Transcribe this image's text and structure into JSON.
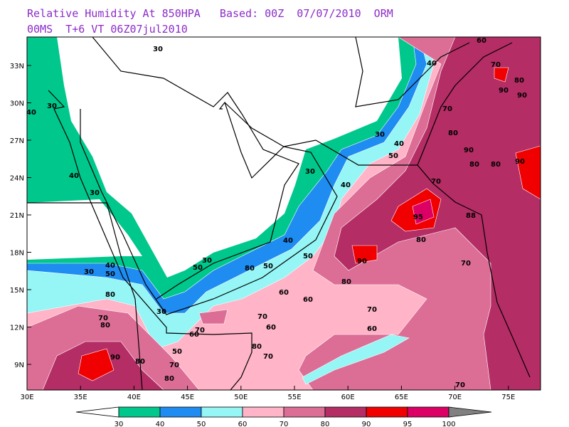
{
  "header": {
    "title_line1": "Relative Humidity At 850HPA   Based: 00Z  07/07/2010  ORM",
    "title_line2": "00MS  T+6 VT 06Z07jul2010"
  },
  "map": {
    "lat_ticks": [
      "33N",
      "30N",
      "27N",
      "24N",
      "21N",
      "18N",
      "15N",
      "12N",
      "9N"
    ],
    "lon_ticks": [
      "30E",
      "35E",
      "40E",
      "45E",
      "50E",
      "55E",
      "60E",
      "65E",
      "70E",
      "75E"
    ],
    "contour_labels": [
      "30",
      "30",
      "40",
      "40",
      "30",
      "40",
      "60",
      "70",
      "80",
      "90",
      "90",
      "70",
      "80",
      "90",
      "80",
      "80",
      "90",
      "40",
      "50",
      "30",
      "30",
      "40",
      "70",
      "95",
      "80",
      "88",
      "90",
      "80",
      "70",
      "40",
      "50",
      "50",
      "80",
      "30",
      "50",
      "30",
      "40",
      "50",
      "80",
      "60",
      "60",
      "70",
      "60",
      "70",
      "60",
      "70",
      "60",
      "50",
      "30",
      "70",
      "80",
      "90",
      "80",
      "70",
      "80",
      "80",
      "70",
      "70"
    ]
  },
  "colorbar": {
    "levels": [
      "30",
      "40",
      "50",
      "60",
      "70",
      "80",
      "90",
      "95",
      "100"
    ],
    "colors": [
      "#00c88c",
      "#1e8cf0",
      "#96f5f5",
      "#ffb4c8",
      "#dc6e96",
      "#b42d64",
      "#f00000",
      "#dc0064"
    ],
    "under_color": "#ffffff",
    "over_color": "#808080"
  }
}
